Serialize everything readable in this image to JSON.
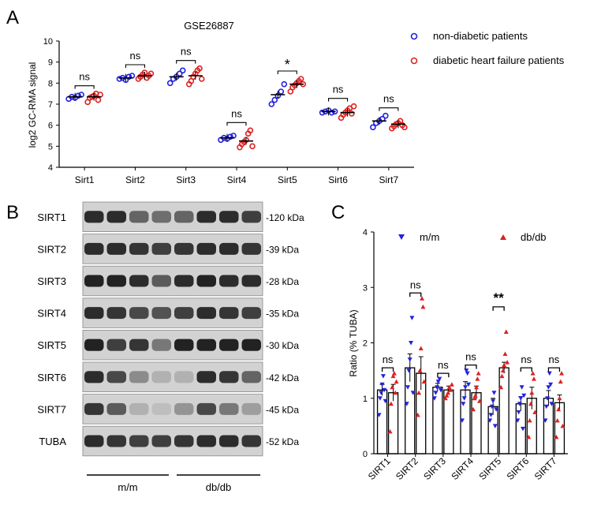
{
  "panel_labels": {
    "a": "A",
    "b": "B",
    "c": "C"
  },
  "chart_data": [
    {
      "panel": "A",
      "type": "scatter",
      "title": "GSE26887",
      "xlabel": "",
      "ylabel": "log2 GC-RMA signal",
      "ylim": [
        4,
        10
      ],
      "yticks": [
        4,
        5,
        6,
        7,
        8,
        9,
        10
      ],
      "grid": false,
      "legend_position": "top-right",
      "colors": {
        "non_diabetic": "#2222dd",
        "diabetic": "#dd2222"
      },
      "categories": [
        "Sirt1",
        "Sirt2",
        "Sirt3",
        "Sirt4",
        "Sirt5",
        "Sirt6",
        "Sirt7"
      ],
      "significance": [
        "ns",
        "ns",
        "ns",
        "ns",
        "*",
        "ns",
        "ns"
      ],
      "series": [
        {
          "name": "non-diabetic patients",
          "means": [
            7.35,
            8.25,
            8.3,
            5.4,
            7.45,
            6.65,
            6.2
          ],
          "points": [
            [
              7.25,
              7.35,
              7.3,
              7.4,
              7.45
            ],
            [
              8.2,
              8.25,
              8.15,
              8.3,
              8.35
            ],
            [
              8.0,
              8.2,
              8.3,
              8.45,
              8.6
            ],
            [
              5.3,
              5.4,
              5.35,
              5.45,
              5.5
            ],
            [
              7.0,
              7.2,
              7.4,
              7.6,
              7.95
            ],
            [
              6.6,
              6.65,
              6.7,
              6.6,
              6.65
            ],
            [
              5.9,
              6.1,
              6.2,
              6.3,
              6.45
            ]
          ]
        },
        {
          "name": "diabetic heart failure patients",
          "means": [
            7.35,
            8.35,
            8.35,
            5.25,
            7.95,
            6.6,
            6.05
          ],
          "points": [
            [
              7.1,
              7.3,
              7.35,
              7.4,
              7.5,
              7.2,
              7.45
            ],
            [
              8.2,
              8.3,
              8.4,
              8.5,
              8.25,
              8.35,
              8.45
            ],
            [
              7.95,
              8.1,
              8.3,
              8.45,
              8.6,
              8.7,
              8.2
            ],
            [
              4.95,
              5.1,
              5.2,
              5.3,
              5.6,
              5.75,
              5.0
            ],
            [
              7.6,
              7.8,
              7.9,
              8.0,
              8.1,
              8.2,
              7.95
            ],
            [
              6.35,
              6.5,
              6.6,
              6.7,
              6.8,
              6.55,
              6.9
            ],
            [
              5.85,
              5.95,
              6.05,
              6.1,
              6.2,
              6.0,
              5.9
            ]
          ]
        }
      ]
    },
    {
      "panel": "C",
      "type": "bar",
      "title": "",
      "xlabel": "",
      "ylabel": "Ratio (% TUBA)",
      "ylim": [
        0,
        4
      ],
      "yticks": [
        0,
        1,
        2,
        3,
        4
      ],
      "grid": false,
      "legend_position": "top",
      "colors": {
        "mm": "#2222dd",
        "dbdb": "#dd2222"
      },
      "categories": [
        "SIRT1",
        "SIRT2",
        "SIRT3",
        "SIRT4",
        "SIRT5",
        "SIRT6",
        "SIRT7"
      ],
      "significance": [
        "ns",
        "ns",
        "ns",
        "ns",
        "**",
        "ns",
        "ns"
      ],
      "series": [
        {
          "name": "m/m",
          "values": [
            1.15,
            1.55,
            1.2,
            1.15,
            0.85,
            0.9,
            1.0
          ],
          "errors": [
            0.1,
            0.25,
            0.07,
            0.15,
            0.15,
            0.13,
            0.14
          ],
          "points": [
            [
              0.7,
              1.0,
              1.1,
              1.25,
              1.4,
              1.15,
              0.95
            ],
            [
              0.9,
              1.2,
              1.5,
              1.7,
              2.0,
              2.45,
              1.1
            ],
            [
              1.0,
              1.1,
              1.2,
              1.3,
              1.35,
              1.15
            ],
            [
              0.6,
              0.9,
              1.0,
              1.2,
              1.5,
              1.45,
              1.25
            ],
            [
              0.6,
              0.7,
              0.85,
              0.95,
              1.1,
              0.5,
              0.8
            ],
            [
              0.6,
              0.75,
              0.9,
              1.0,
              1.2,
              0.45,
              1.05
            ],
            [
              0.6,
              0.85,
              1.0,
              1.2,
              1.45,
              1.25,
              0.9
            ]
          ]
        },
        {
          "name": "db/db",
          "values": [
            1.1,
            1.45,
            1.15,
            1.1,
            1.55,
            1.0,
            0.92
          ],
          "errors": [
            0.15,
            0.3,
            0.07,
            0.12,
            0.1,
            0.2,
            0.14
          ],
          "points": [
            [
              0.4,
              0.9,
              1.2,
              1.4,
              1.45,
              1.1,
              1.3
            ],
            [
              0.7,
              1.1,
              1.5,
              1.9,
              2.8,
              2.65,
              1.3
            ],
            [
              1.0,
              1.05,
              1.1,
              1.2,
              1.15,
              1.25
            ],
            [
              0.8,
              1.0,
              1.05,
              1.2,
              1.35,
              1.45,
              0.95
            ],
            [
              1.2,
              1.4,
              1.5,
              1.6,
              1.8,
              2.2,
              1.65
            ],
            [
              0.3,
              0.6,
              0.9,
              1.1,
              1.45,
              1.35,
              0.75
            ],
            [
              0.3,
              0.6,
              0.8,
              1.0,
              1.3,
              1.45,
              0.5
            ]
          ]
        }
      ]
    }
  ],
  "blot": {
    "bands": [
      {
        "label": "SIRT1",
        "size": "-120 kDa",
        "intensity": [
          0.85,
          0.85,
          0.55,
          0.5,
          0.55,
          0.85,
          0.85,
          0.75
        ]
      },
      {
        "label": "SIRT2",
        "size": "-39 kDa",
        "intensity": [
          0.85,
          0.85,
          0.8,
          0.75,
          0.8,
          0.85,
          0.85,
          0.8
        ]
      },
      {
        "label": "SIRT3",
        "size": "-28 kDa",
        "intensity": [
          0.9,
          0.9,
          0.85,
          0.6,
          0.85,
          0.9,
          0.85,
          0.85
        ]
      },
      {
        "label": "SIRT4",
        "size": "-35 kDa",
        "intensity": [
          0.85,
          0.8,
          0.7,
          0.65,
          0.75,
          0.85,
          0.8,
          0.75
        ]
      },
      {
        "label": "SIRT5",
        "size": "-30 kDa",
        "intensity": [
          0.9,
          0.75,
          0.8,
          0.45,
          0.9,
          0.9,
          0.9,
          0.9
        ]
      },
      {
        "label": "SIRT6",
        "size": "-42 kDa",
        "intensity": [
          0.85,
          0.7,
          0.35,
          0.15,
          0.15,
          0.85,
          0.8,
          0.55
        ]
      },
      {
        "label": "SIRT7",
        "size": "-45 kDa",
        "intensity": [
          0.8,
          0.6,
          0.15,
          0.08,
          0.3,
          0.7,
          0.45,
          0.25
        ]
      },
      {
        "label": "TUBA",
        "size": "-52 kDa",
        "intensity": [
          0.85,
          0.8,
          0.75,
          0.75,
          0.8,
          0.85,
          0.85,
          0.8
        ]
      }
    ],
    "groups": [
      "m/m",
      "db/db"
    ]
  }
}
